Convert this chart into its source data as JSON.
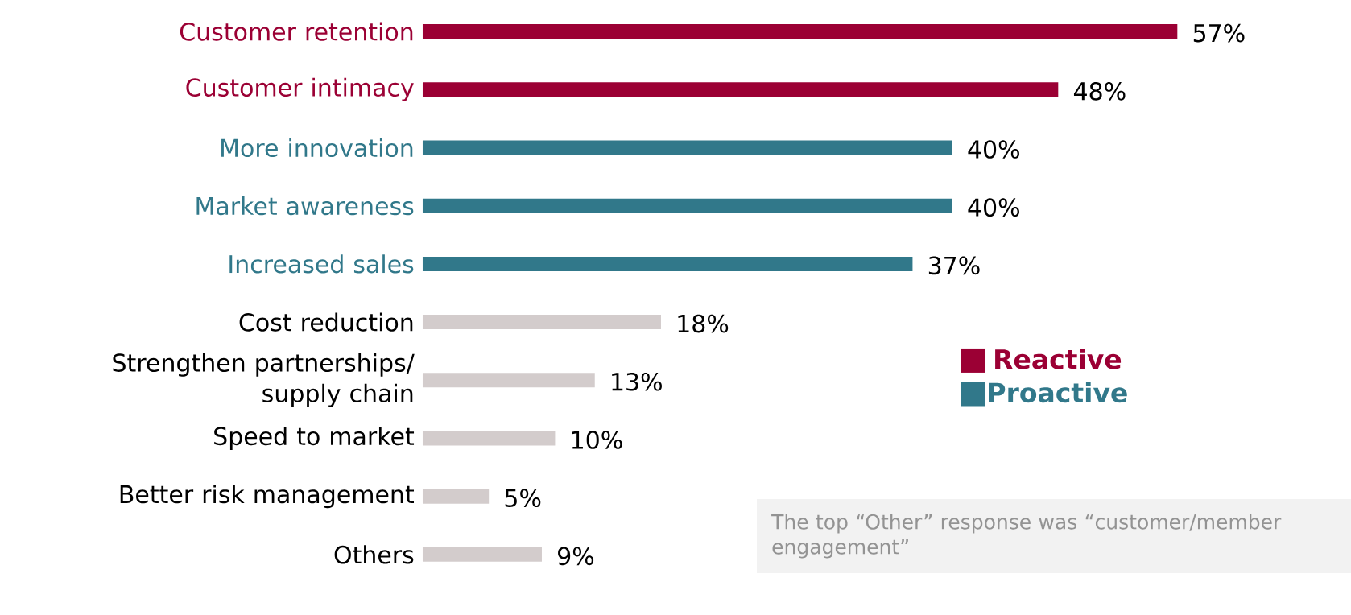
{
  "chart_data": {
    "type": "bar",
    "orientation": "horizontal",
    "categories": [
      "Customer retention",
      "Customer intimacy",
      "More innovation",
      "Market awareness",
      "Increased sales",
      "Cost reduction",
      "Strengthen partnerships/ supply chain",
      "Speed to market",
      "Better risk management",
      "Others"
    ],
    "series": [
      {
        "name": "Reactive",
        "color": "#9b0034",
        "values": [
          57,
          48,
          null,
          null,
          null,
          null,
          null,
          null,
          null,
          null
        ],
        "value_labels": [
          "57%",
          "48%",
          null,
          null,
          null,
          null,
          null,
          null,
          null,
          null
        ]
      },
      {
        "name": "Proactive",
        "color": "#31788a",
        "values": [
          null,
          null,
          40,
          40,
          37,
          null,
          null,
          null,
          null,
          null
        ],
        "value_labels": [
          null,
          null,
          "40%",
          "40%",
          "37%",
          null,
          null,
          null,
          null,
          null
        ]
      },
      {
        "color": "#d3cccc",
        "values": [
          null,
          null,
          null,
          null,
          null,
          18,
          13,
          10,
          5,
          9
        ],
        "value_labels": [
          null,
          null,
          null,
          null,
          null,
          "18%",
          "13%",
          "10%",
          "5%",
          "9%"
        ]
      }
    ],
    "legend": "right",
    "tick_labels": "y",
    "annotations": [
      "The top “Other” response was “customer/member engagement”"
    ]
  }
}
